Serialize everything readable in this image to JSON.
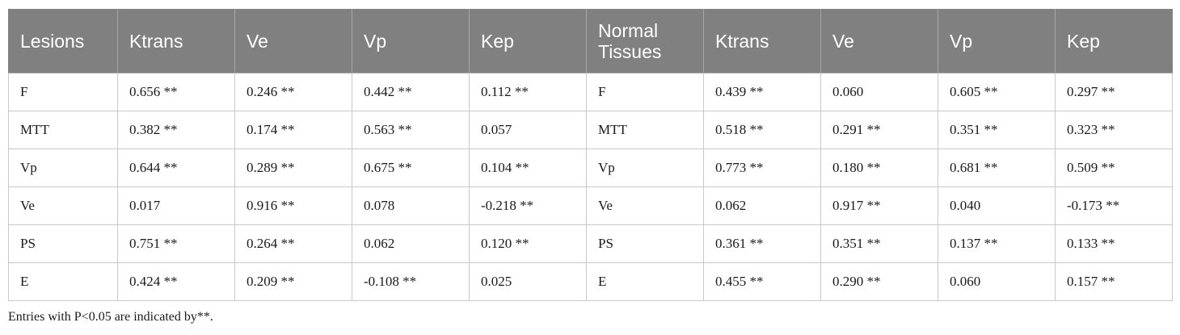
{
  "table": {
    "headers": [
      "Lesions",
      "Ktrans",
      "Ve",
      "Vp",
      "Kep",
      "Normal Tissues",
      "Ktrans",
      "Ve",
      "Vp",
      "Kep"
    ],
    "rows": [
      [
        "F",
        "0.656 **",
        "0.246 **",
        "0.442 **",
        "0.112 **",
        "F",
        "0.439 **",
        "0.060",
        "0.605 **",
        "0.297 **"
      ],
      [
        "MTT",
        "0.382 **",
        "0.174 **",
        "0.563 **",
        "0.057",
        "MTT",
        "0.518 **",
        "0.291 **",
        "0.351 **",
        "0.323 **"
      ],
      [
        "Vp",
        "0.644 **",
        "0.289 **",
        "0.675 **",
        "0.104 **",
        "Vp",
        "0.773 **",
        "0.180 **",
        "0.681 **",
        "0.509 **"
      ],
      [
        "Ve",
        "0.017",
        "0.916 **",
        "0.078",
        "-0.218 **",
        "Ve",
        "0.062",
        "0.917 **",
        "0.040",
        "-0.173 **"
      ],
      [
        "PS",
        "0.751 **",
        "0.264 **",
        "0.062",
        "0.120 **",
        "PS",
        "0.361 **",
        "0.351 **",
        "0.137 **",
        "0.133 **"
      ],
      [
        "E",
        "0.424 **",
        "0.209 **",
        "-0.108 **",
        "0.025",
        "E",
        "0.455 **",
        "0.290 **",
        "0.060",
        "0.157 **"
      ]
    ]
  },
  "footnote": "Entries with P<0.05 are indicated by**."
}
